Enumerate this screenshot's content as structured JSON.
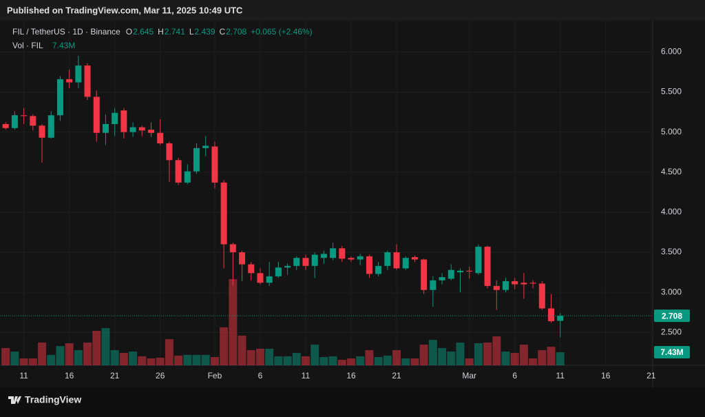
{
  "header": {
    "published": "Published on TradingView.com, Mar 11, 2025 10:49 UTC",
    "brand": "TradingView"
  },
  "chart_data": {
    "type": "candlestick",
    "legend": {
      "symbol": "FIL / TetherUS · 1D · Binance",
      "open_label": "O",
      "high_label": "H",
      "low_label": "L",
      "close_label": "C",
      "change_label": "+0.065 (+2.46%)",
      "volume_title": "Vol · FIL"
    },
    "x": [
      "Jan 9",
      "Jan 10",
      "Jan 11",
      "Jan 12",
      "Jan 13",
      "Jan 14",
      "Jan 15",
      "Jan 16",
      "Jan 17",
      "Jan 18",
      "Jan 19",
      "Jan 20",
      "Jan 21",
      "Jan 22",
      "Jan 23",
      "Jan 24",
      "Jan 25",
      "Jan 26",
      "Jan 27",
      "Jan 28",
      "Jan 29",
      "Jan 30",
      "Jan 31",
      "Feb 1",
      "Feb 2",
      "Feb 3",
      "Feb 4",
      "Feb 5",
      "Feb 6",
      "Feb 7",
      "Feb 8",
      "Feb 9",
      "Feb 10",
      "Feb 11",
      "Feb 12",
      "Feb 13",
      "Feb 14",
      "Feb 15",
      "Feb 16",
      "Feb 17",
      "Feb 18",
      "Feb 19",
      "Feb 20",
      "Feb 21",
      "Feb 22",
      "Feb 23",
      "Feb 24",
      "Feb 25",
      "Feb 26",
      "Feb 27",
      "Feb 28",
      "Mar 1",
      "Mar 2",
      "Mar 3",
      "Mar 4",
      "Mar 5",
      "Mar 6",
      "Mar 7",
      "Mar 8",
      "Mar 9",
      "Mar 10",
      "Mar 11"
    ],
    "open": [
      5.1,
      5.05,
      5.21,
      5.2,
      5.08,
      4.93,
      5.21,
      5.66,
      5.62,
      5.83,
      5.44,
      4.99,
      5.1,
      5.27,
      5.0,
      5.06,
      5.03,
      4.99,
      4.86,
      4.65,
      4.37,
      4.51,
      4.8,
      4.82,
      4.37,
      3.6,
      3.5,
      3.35,
      3.24,
      3.12,
      3.2,
      3.31,
      3.33,
      3.43,
      3.33,
      3.43,
      3.43,
      3.55,
      3.43,
      3.41,
      3.45,
      3.23,
      3.33,
      3.5,
      3.3,
      3.44,
      3.41,
      3.03,
      3.15,
      3.17,
      3.25,
      3.27,
      3.24,
      3.57,
      3.08,
      3.03,
      3.14,
      3.12,
      3.12,
      3.11,
      2.8,
      2.645
    ],
    "high": [
      5.12,
      5.26,
      5.3,
      5.22,
      5.1,
      5.26,
      5.7,
      5.78,
      5.95,
      5.86,
      5.52,
      5.22,
      5.3,
      5.3,
      5.12,
      5.08,
      5.12,
      5.16,
      4.88,
      4.68,
      4.6,
      4.86,
      4.95,
      4.88,
      4.4,
      3.62,
      3.52,
      3.38,
      3.3,
      3.38,
      3.38,
      3.36,
      3.45,
      3.47,
      3.5,
      3.52,
      3.62,
      3.58,
      3.45,
      3.48,
      3.47,
      3.38,
      3.52,
      3.6,
      3.45,
      3.46,
      3.42,
      3.2,
      3.24,
      3.35,
      3.3,
      3.32,
      3.6,
      3.58,
      3.15,
      3.18,
      3.18,
      3.24,
      3.15,
      3.14,
      2.98,
      2.741
    ],
    "low": [
      5.03,
      5.03,
      5.1,
      5.02,
      4.62,
      4.92,
      5.14,
      5.55,
      5.55,
      5.4,
      4.88,
      4.84,
      4.95,
      4.92,
      4.94,
      4.95,
      4.94,
      4.84,
      4.38,
      4.34,
      4.35,
      4.48,
      4.7,
      4.3,
      3.3,
      3.08,
      3.14,
      3.15,
      3.1,
      3.08,
      3.18,
      3.22,
      3.28,
      3.28,
      3.18,
      3.36,
      3.4,
      3.38,
      3.38,
      3.34,
      3.18,
      3.2,
      3.28,
      3.28,
      3.28,
      3.38,
      2.98,
      2.82,
      3.1,
      3.15,
      3.0,
      3.17,
      3.22,
      3.05,
      2.78,
      3.0,
      3.04,
      2.92,
      3.05,
      2.78,
      2.62,
      2.439
    ],
    "close": [
      5.05,
      5.21,
      5.2,
      5.08,
      4.93,
      5.21,
      5.66,
      5.62,
      5.83,
      5.44,
      4.99,
      5.1,
      5.24,
      5.0,
      5.06,
      5.02,
      4.99,
      4.86,
      4.65,
      4.37,
      4.51,
      4.8,
      4.83,
      4.37,
      3.6,
      3.5,
      3.35,
      3.24,
      3.12,
      3.2,
      3.31,
      3.33,
      3.43,
      3.33,
      3.47,
      3.48,
      3.55,
      3.42,
      3.41,
      3.45,
      3.23,
      3.33,
      3.5,
      3.3,
      3.43,
      3.41,
      3.03,
      3.15,
      3.19,
      3.28,
      3.27,
      3.26,
      3.57,
      3.08,
      3.03,
      3.14,
      3.1,
      3.1,
      3.11,
      2.8,
      2.64,
      2.708
    ],
    "volume": [
      9.8,
      7.8,
      3.9,
      3.9,
      12.9,
      5.9,
      10.9,
      12.5,
      8.6,
      12.9,
      19.5,
      21.1,
      8.6,
      7.0,
      7.8,
      5.1,
      3.9,
      4.3,
      14.8,
      5.5,
      5.9,
      5.9,
      5.9,
      4.7,
      21.5,
      48.8,
      16.8,
      8.6,
      9.4,
      9.4,
      5.1,
      5.1,
      7.0,
      5.1,
      11.7,
      4.7,
      5.1,
      3.1,
      3.9,
      5.1,
      8.6,
      4.7,
      5.5,
      8.6,
      3.9,
      3.9,
      11.7,
      14.4,
      9.8,
      7.8,
      12.9,
      3.9,
      12.5,
      12.9,
      16.4,
      7.8,
      7.0,
      11.7,
      3.9,
      8.6,
      10.5,
      7.43
    ],
    "volume_labels": [
      null,
      null,
      null,
      null,
      null,
      null,
      null,
      null,
      null,
      null,
      null,
      null,
      null,
      null,
      null,
      null,
      null,
      null,
      null,
      null,
      null,
      null,
      null,
      null,
      null,
      null,
      null,
      null,
      null,
      null,
      null,
      null,
      null,
      null,
      null,
      null,
      null,
      null,
      null,
      null,
      null,
      null,
      null,
      null,
      null,
      null,
      null,
      null,
      null,
      null,
      null,
      null,
      null,
      null,
      null,
      null,
      null,
      null,
      null,
      null,
      null,
      "7.43M"
    ],
    "up_color": "#089981",
    "down_color": "#f23645",
    "xlim": [
      "Jan 8",
      "Mar 22"
    ],
    "xticks": [
      {
        "value": "Jan 11",
        "label": "11"
      },
      {
        "value": "Jan 16",
        "label": "16"
      },
      {
        "value": "Jan 21",
        "label": "21"
      },
      {
        "value": "Jan 26",
        "label": "26"
      },
      {
        "value": "Feb 1",
        "label": "Feb"
      },
      {
        "value": "Feb 6",
        "label": "6"
      },
      {
        "value": "Feb 11",
        "label": "11"
      },
      {
        "value": "Feb 16",
        "label": "16"
      },
      {
        "value": "Feb 21",
        "label": "21"
      },
      {
        "value": "Mar 1",
        "label": "Mar"
      },
      {
        "value": "Mar 6",
        "label": "6"
      },
      {
        "value": "Mar 11",
        "label": "11"
      },
      {
        "value": "Mar 16",
        "label": "16"
      },
      {
        "value": "Mar 21",
        "label": "21"
      }
    ],
    "ylim": [
      2.09,
      6.39
    ],
    "yticks": [
      {
        "value": 2.5,
        "label": "2.500"
      },
      {
        "value": 3,
        "label": "3.000"
      },
      {
        "value": 3.5,
        "label": "3.500"
      },
      {
        "value": 4,
        "label": "4.000"
      },
      {
        "value": 4.5,
        "label": "4.500"
      },
      {
        "value": 5,
        "label": "5.000"
      },
      {
        "value": 5.5,
        "label": "5.500"
      },
      {
        "value": 6,
        "label": "6.000"
      }
    ],
    "volume_lim": [
      0,
      48.8
    ],
    "grid": true
  }
}
